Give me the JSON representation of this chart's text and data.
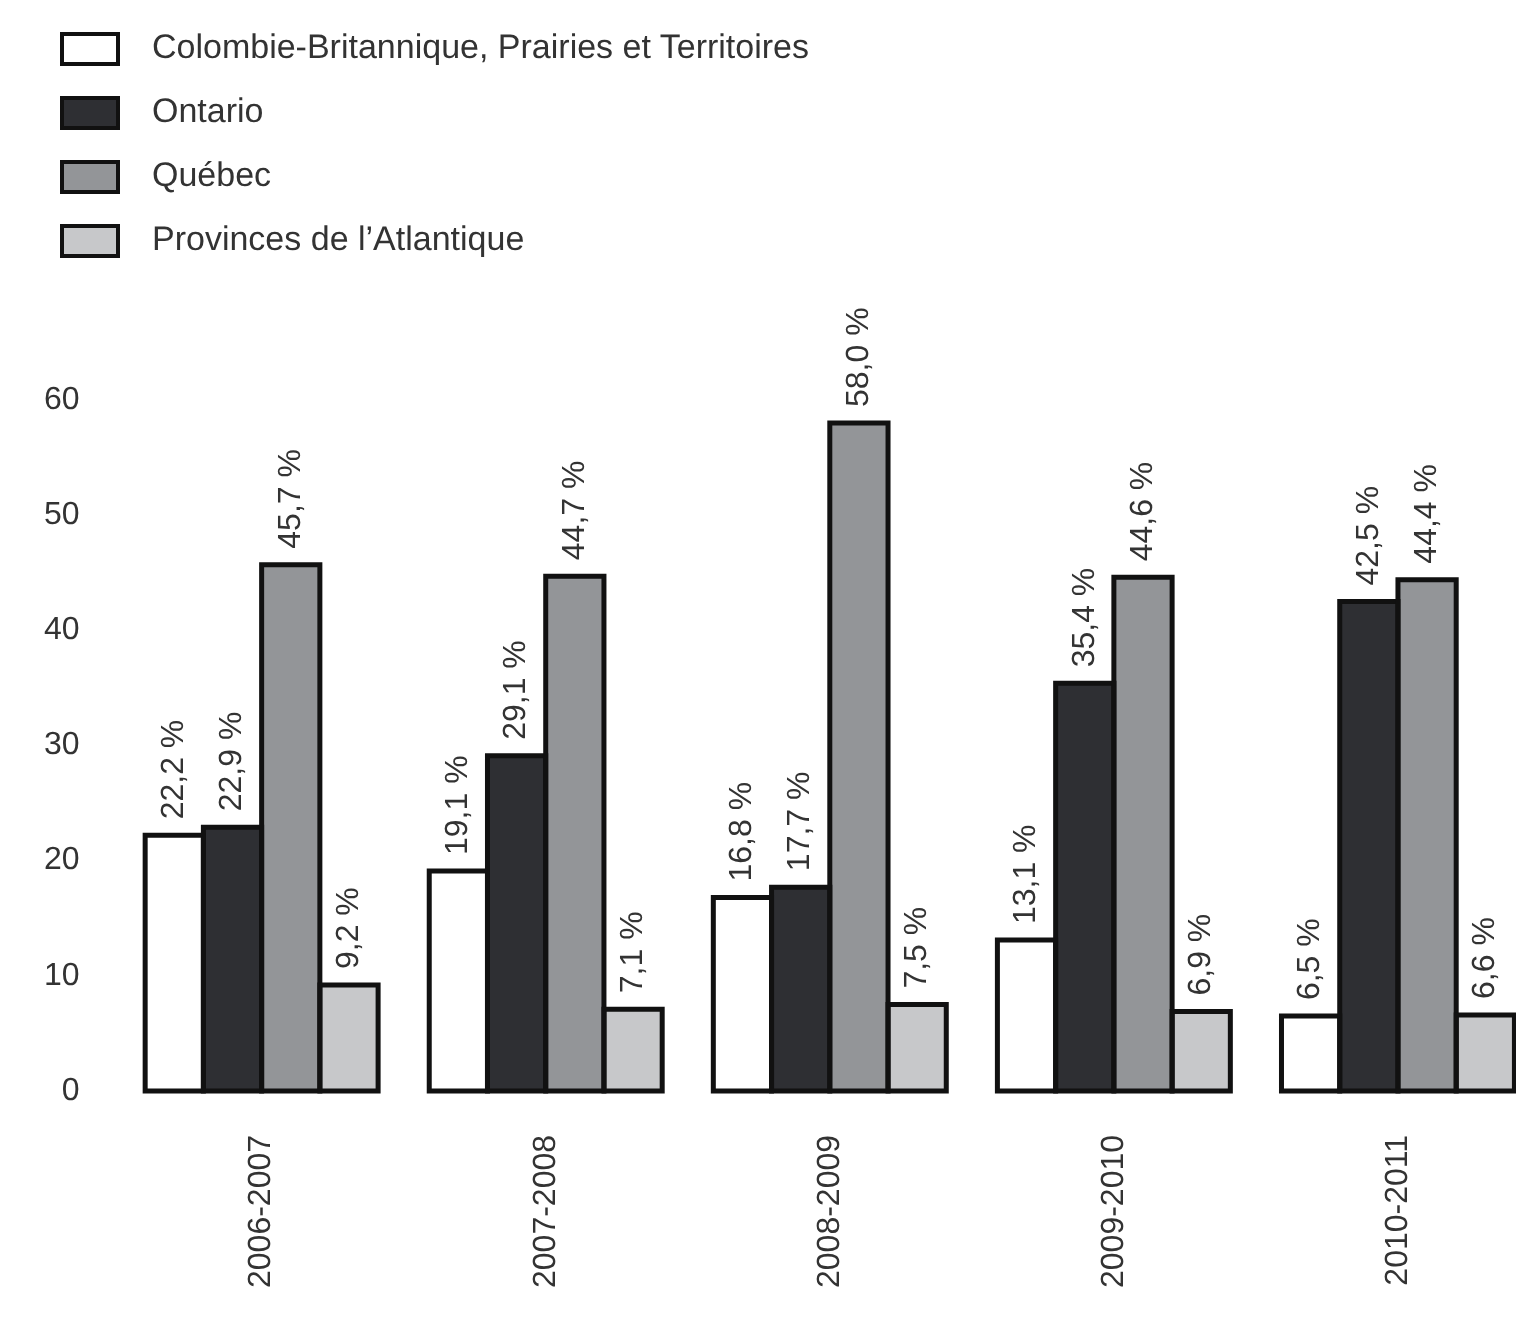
{
  "chart_data": {
    "type": "bar",
    "categories": [
      "2006-2007",
      "2007-2008",
      "2008-2009",
      "2009-2010",
      "2010-2011"
    ],
    "series": [
      {
        "name": "Colombie-Britannique, Prairies et Territoires",
        "color": "#ffffff",
        "values": [
          22.2,
          19.1,
          16.8,
          13.1,
          6.5
        ],
        "value_labels": [
          "22,2 %",
          "19,1 %",
          "16,8 %",
          "13,1 %",
          "6,5 %"
        ]
      },
      {
        "name": "Ontario",
        "color": "#2e2f33",
        "values": [
          22.9,
          29.1,
          17.7,
          35.4,
          42.5
        ],
        "value_labels": [
          "22,9 %",
          "29,1 %",
          "17,7 %",
          "35,4 %",
          "42,5 %"
        ]
      },
      {
        "name": "Québec",
        "color": "#939598",
        "values": [
          45.7,
          44.7,
          58.0,
          44.6,
          44.4
        ],
        "value_labels": [
          "45,7 %",
          "44,7 %",
          "58,0 %",
          "44,6 %",
          "44,4 %"
        ]
      },
      {
        "name": "Provinces de l’Atlantique",
        "color": "#c7c8ca",
        "values": [
          9.2,
          7.1,
          7.5,
          6.9,
          6.6
        ],
        "value_labels": [
          "9,2 %",
          "7,1 %",
          "7,5 %",
          "6,9 %",
          "6,6 %"
        ]
      }
    ],
    "ylim": [
      0,
      60
    ],
    "yticks": [
      0,
      10,
      20,
      30,
      40,
      50,
      60
    ],
    "grid": false,
    "legend": "top left"
  }
}
